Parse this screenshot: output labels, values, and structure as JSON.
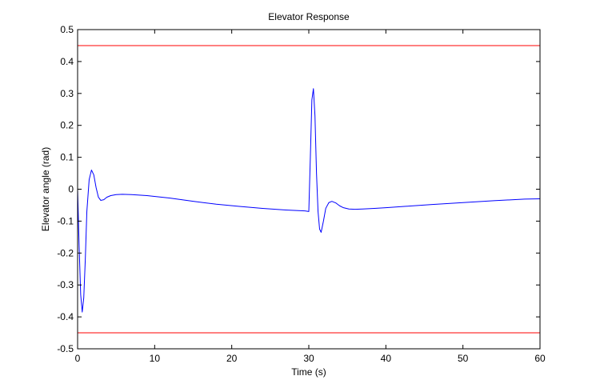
{
  "chart_data": {
    "type": "line",
    "title": "Elevator Response",
    "xlabel": "Time (s)",
    "ylabel": "Elevator angle (rad)",
    "xlim": [
      0,
      60
    ],
    "ylim": [
      -0.5,
      0.5
    ],
    "xticks": [
      0,
      10,
      20,
      30,
      40,
      50,
      60
    ],
    "xtick_labels": [
      "0",
      "10",
      "20",
      "30",
      "40",
      "50",
      "60"
    ],
    "yticks": [
      -0.5,
      -0.4,
      -0.3,
      -0.2,
      -0.1,
      0,
      0.1,
      0.2,
      0.3,
      0.4,
      0.5
    ],
    "ytick_labels": [
      "-0.5",
      "-0.4",
      "-0.3",
      "-0.2",
      "-0.1",
      "0",
      "0.1",
      "0.2",
      "0.3",
      "0.4",
      "0.5"
    ],
    "grid": false,
    "legend": "none",
    "colors": {
      "response": "#0000ff",
      "limits": "#ff0000",
      "axes": "#000000",
      "plot_bg": "#ffffff"
    },
    "series": [
      {
        "kind": "response",
        "x": [
          0,
          0.2,
          0.4,
          0.6,
          0.8,
          1.0,
          1.2,
          1.5,
          1.8,
          2.1,
          2.4,
          2.7,
          3.0,
          3.4,
          3.8,
          4.3,
          5.0,
          5.8,
          7.0,
          9.0,
          12,
          15,
          18,
          21,
          24,
          27,
          29.5,
          30.0,
          30.2,
          30.4,
          30.6,
          30.8,
          31.0,
          31.2,
          31.4,
          31.6,
          31.9,
          32.2,
          32.6,
          33.0,
          33.5,
          34.0,
          34.5,
          35.2,
          36.0,
          37.0,
          38.5,
          40,
          43,
          46,
          50,
          54,
          58,
          60
        ],
        "y": [
          0,
          -0.18,
          -0.33,
          -0.385,
          -0.34,
          -0.22,
          -0.07,
          0.03,
          0.06,
          0.045,
          0.005,
          -0.025,
          -0.035,
          -0.033,
          -0.025,
          -0.02,
          -0.017,
          -0.016,
          -0.017,
          -0.02,
          -0.028,
          -0.038,
          -0.047,
          -0.054,
          -0.06,
          -0.065,
          -0.068,
          -0.07,
          0.1,
          0.28,
          0.315,
          0.23,
          0.05,
          -0.07,
          -0.125,
          -0.135,
          -0.1,
          -0.06,
          -0.042,
          -0.038,
          -0.043,
          -0.052,
          -0.058,
          -0.062,
          -0.063,
          -0.062,
          -0.06,
          -0.058,
          -0.053,
          -0.048,
          -0.042,
          -0.036,
          -0.031,
          -0.03
        ]
      },
      {
        "kind": "limit",
        "x": [
          0,
          60
        ],
        "y": [
          0.45,
          0.45
        ]
      },
      {
        "kind": "limit",
        "x": [
          0,
          60
        ],
        "y": [
          -0.45,
          -0.45
        ]
      }
    ]
  }
}
